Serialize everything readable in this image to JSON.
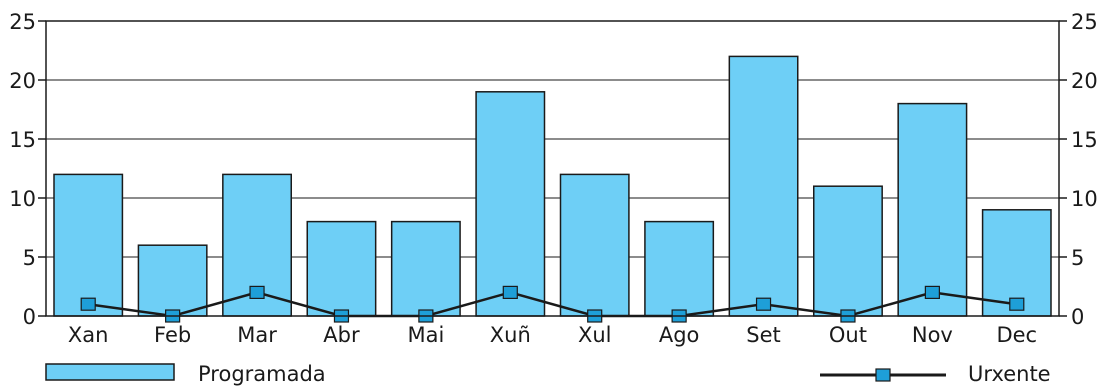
{
  "chart_data": {
    "type": "bar",
    "categories": [
      "Xan",
      "Feb",
      "Mar",
      "Abr",
      "Mai",
      "Xuñ",
      "Xul",
      "Ago",
      "Set",
      "Out",
      "Nov",
      "Dec"
    ],
    "series": [
      {
        "name": "Programada",
        "type": "bar",
        "values": [
          12,
          6,
          12,
          8,
          8,
          19,
          12,
          8,
          22,
          11,
          18,
          9
        ],
        "color": "#6ECFF6"
      },
      {
        "name": "Urxente",
        "type": "line",
        "values": [
          1,
          0,
          2,
          0,
          0,
          2,
          0,
          0,
          1,
          0,
          2,
          1
        ],
        "color": "#1a1a1a",
        "marker_color": "#1E9FD8"
      }
    ],
    "ylim": [
      0,
      25
    ],
    "yticks": [
      0,
      5,
      10,
      15,
      20,
      25
    ],
    "secondary_yticks": [
      0,
      5,
      10,
      15,
      20,
      25
    ],
    "grid": "horizontal",
    "legend_placement": "bottom"
  }
}
